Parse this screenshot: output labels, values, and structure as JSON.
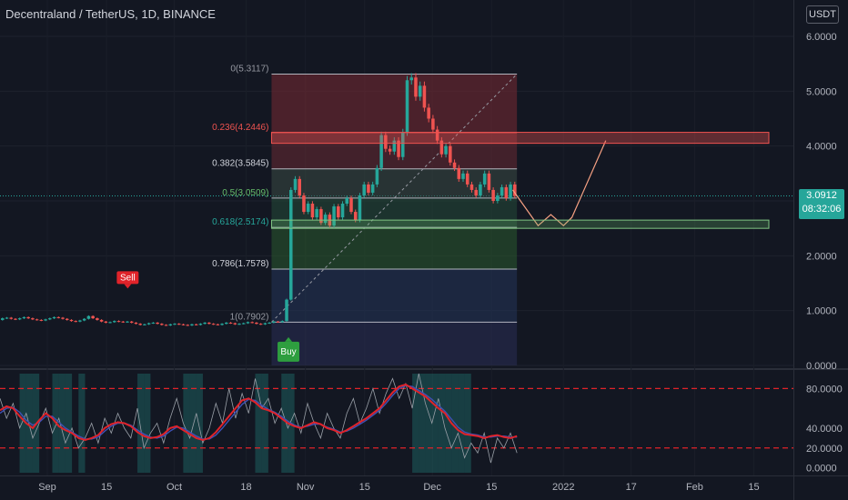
{
  "header": {
    "title": "Decentraland / TetherUS, 1D, BINANCE",
    "currency": "USDT"
  },
  "last_price": {
    "value": "3.0912",
    "countdown": "08:32:06"
  },
  "colors": {
    "background": "#131722",
    "up": "#26a69a",
    "down": "#ef5350",
    "ema_red": "#e0232a",
    "buy": "#2e9e3f",
    "sell": "#e0232a"
  },
  "chart_data": {
    "type": "candlestick",
    "price_axis": {
      "ylim": [
        0,
        6
      ],
      "ticks": [
        "6.0000",
        "5.0000",
        "4.0000",
        "3.0000",
        "2.0000",
        "1.0000",
        "0.0000"
      ]
    },
    "date_axis": {
      "ticks": [
        "Sep",
        "15",
        "Oct",
        "18",
        "Nov",
        "15",
        "Dec",
        "15",
        "2022",
        "17",
        "Feb",
        "15"
      ]
    },
    "close_series": [
      0.8,
      0.82,
      0.85,
      0.84,
      0.83,
      0.86,
      0.87,
      0.85,
      0.84,
      0.86,
      0.88,
      0.86,
      0.84,
      0.83,
      0.82,
      0.84,
      0.86,
      0.88,
      0.87,
      0.85,
      0.83,
      0.81,
      0.8,
      0.82,
      0.85,
      0.9,
      0.86,
      0.83,
      0.8,
      0.78,
      0.79,
      0.81,
      0.8,
      0.79,
      0.8,
      0.78,
      0.76,
      0.74,
      0.75,
      0.77,
      0.78,
      0.76,
      0.74,
      0.73,
      0.75,
      0.76,
      0.75,
      0.74,
      0.73,
      0.75,
      0.74,
      0.76,
      0.78,
      0.76,
      0.75,
      0.74,
      0.76,
      0.78,
      0.77,
      0.75,
      0.76,
      0.77,
      0.79,
      0.78,
      0.76,
      0.75,
      0.77,
      0.78,
      0.8,
      0.79,
      0.81,
      1.2,
      3.2,
      3.4,
      3.1,
      2.8,
      2.95,
      2.7,
      2.85,
      2.6,
      2.75,
      2.55,
      2.9,
      2.7,
      2.95,
      3.05,
      2.8,
      2.65,
      3.1,
      3.3,
      3.15,
      3.3,
      3.6,
      4.2,
      3.95,
      3.9,
      4.1,
      3.8,
      4.25,
      5.2,
      5.25,
      4.9,
      5.1,
      4.7,
      4.5,
      4.3,
      4.1,
      3.85,
      4.0,
      3.7,
      3.6,
      3.4,
      3.5,
      3.3,
      3.2,
      3.1,
      3.3,
      3.5,
      3.2,
      3.0,
      3.1,
      3.25,
      3.05,
      3.3,
      3.09
    ],
    "projection": [
      {
        "date": "2021-12-20",
        "price": 3.2
      },
      {
        "date": "2021-12-26",
        "price": 2.55
      },
      {
        "date": "2021-12-29",
        "price": 2.75
      },
      {
        "date": "2022-01-01",
        "price": 2.55
      },
      {
        "date": "2022-01-03",
        "price": 2.7
      },
      {
        "date": "2022-01-11",
        "price": 4.1
      }
    ],
    "fibonacci": [
      {
        "label": "0(5.3117)",
        "level": 5.3117
      },
      {
        "label": "0.236(4.2446)",
        "level": 4.2446
      },
      {
        "label": "0.382(3.5845)",
        "level": 3.5845
      },
      {
        "label": "0.5(3.0509)",
        "level": 3.0509
      },
      {
        "label": "0.618(2.5174)",
        "level": 2.5174
      },
      {
        "label": "0.786(1.7578)",
        "level": 1.7578
      },
      {
        "label": "1(0.7902)",
        "level": 0.7902
      }
    ],
    "zones": [
      {
        "low": 4.05,
        "high": 4.25
      },
      {
        "low": 2.5,
        "high": 2.65
      }
    ],
    "signals": [
      {
        "label": "Sell",
        "date": "2021-09-20",
        "price": 1.42
      },
      {
        "label": "Buy",
        "date": "2021-10-28",
        "price": 0.3
      }
    ],
    "oscillator": {
      "ylim": [
        -5,
        95
      ],
      "ticks": [
        "80.0000",
        "40.0000",
        "20.0000",
        "0.0000"
      ],
      "overbought": 80,
      "oversold": 20,
      "k": [
        58,
        62,
        60,
        52,
        45,
        40,
        48,
        55,
        50,
        42,
        38,
        35,
        30,
        28,
        30,
        33,
        40,
        44,
        46,
        45,
        42,
        36,
        32,
        30,
        31,
        34,
        40,
        42,
        38,
        34,
        30,
        28,
        30,
        36,
        44,
        52,
        60,
        68,
        70,
        66,
        60,
        58,
        55,
        50,
        45,
        42,
        40,
        43,
        46,
        44,
        40,
        38,
        35,
        38,
        42,
        46,
        50,
        55,
        60,
        68,
        76,
        82,
        84,
        80,
        76,
        72,
        66,
        60,
        55,
        45,
        38,
        34,
        33,
        32,
        30,
        32,
        33,
        31,
        30,
        32
      ],
      "d": [
        55,
        60,
        61,
        56,
        48,
        43,
        46,
        52,
        52,
        46,
        40,
        36,
        32,
        29,
        29,
        31,
        37,
        42,
        45,
        45,
        43,
        38,
        34,
        31,
        30,
        32,
        37,
        41,
        40,
        36,
        32,
        29,
        29,
        33,
        40,
        48,
        56,
        64,
        69,
        68,
        63,
        59,
        56,
        52,
        47,
        43,
        41,
        42,
        44,
        44,
        41,
        39,
        36,
        37,
        40,
        44,
        48,
        53,
        58,
        65,
        73,
        80,
        83,
        82,
        78,
        74,
        69,
        63,
        57,
        49,
        41,
        36,
        34,
        33,
        31,
        31,
        32,
        32,
        31,
        31
      ],
      "raw": [
        70,
        50,
        65,
        40,
        55,
        30,
        45,
        60,
        35,
        50,
        25,
        40,
        20,
        30,
        45,
        25,
        50,
        35,
        55,
        40,
        30,
        60,
        20,
        35,
        45,
        25,
        50,
        70,
        45,
        30,
        55,
        25,
        40,
        65,
        45,
        80,
        50,
        75,
        55,
        90,
        60,
        70,
        45,
        60,
        40,
        55,
        35,
        65,
        45,
        30,
        55,
        40,
        30,
        55,
        70,
        45,
        60,
        80,
        55,
        75,
        90,
        70,
        85,
        60,
        95,
        65,
        45,
        70,
        40,
        20,
        35,
        10,
        25,
        15,
        35,
        5,
        30,
        20,
        35,
        15
      ]
    }
  }
}
